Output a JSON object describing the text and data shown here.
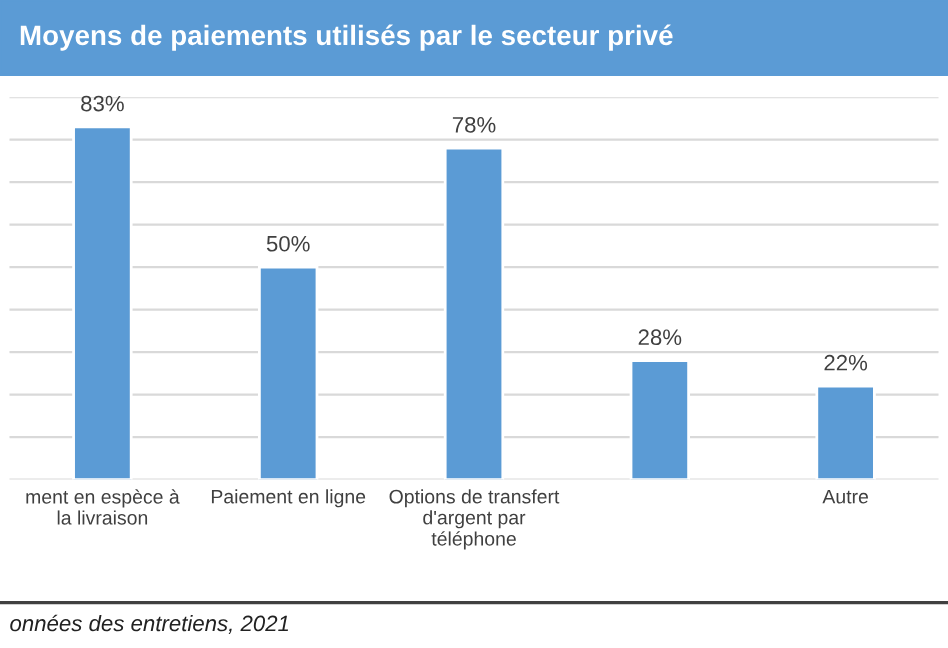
{
  "chart_data": {
    "type": "bar",
    "title": "Moyens de paiements utilisés par le secteur privé",
    "categories": [
      "ment en espèce à\nla livraison",
      "Paiement en ligne",
      "Options de transfert\nd'argent par\ntéléphone",
      null,
      "Autre"
    ],
    "values": [
      83,
      50,
      78,
      28,
      22
    ],
    "value_labels": [
      "83%",
      "50%",
      "78%",
      "28%",
      "22%"
    ],
    "color": "#5b9bd5",
    "ylim": [
      0,
      90
    ],
    "yticks": [
      {
        "value": 0,
        "label": null
      },
      {
        "value": 10,
        "label": null
      },
      {
        "value": 20,
        "label": null
      },
      {
        "value": 30,
        "label": null
      },
      {
        "value": 40,
        "label": null
      },
      {
        "value": 50,
        "label": null
      },
      {
        "value": 60,
        "label": null
      },
      {
        "value": 70,
        "label": null
      },
      {
        "value": 80,
        "label": null
      },
      {
        "value": 90,
        "label": null
      }
    ],
    "grid": "y",
    "tick_labels": "x",
    "annotations": [
      "onnées des entretiens, 2021"
    ]
  }
}
